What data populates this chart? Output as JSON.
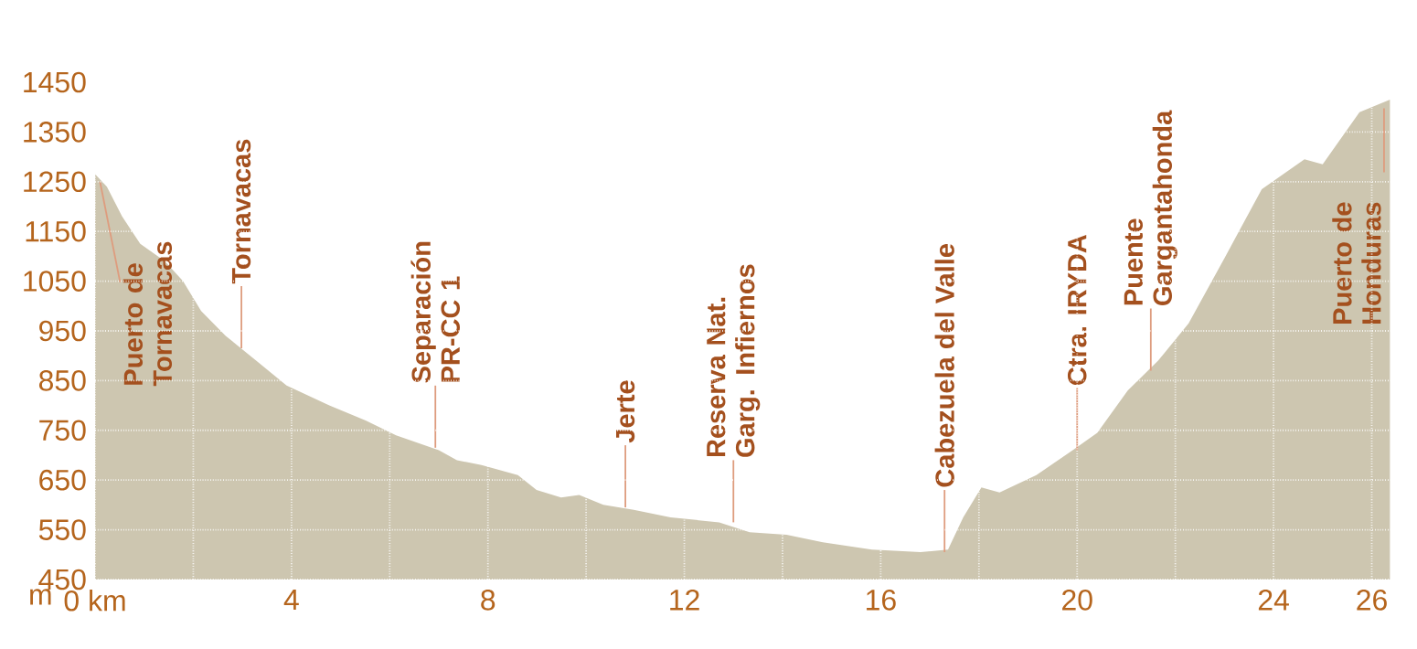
{
  "chart_data": {
    "type": "area",
    "ylabel": "m",
    "color": "#cdc6b0",
    "grid": true,
    "x": [
      0,
      0.24,
      0.55,
      0.92,
      1.42,
      1.79,
      2.16,
      2.66,
      3.28,
      3.9,
      4.77,
      5.51,
      6.13,
      7.0,
      7.37,
      7.87,
      8.61,
      8.99,
      9.49,
      9.86,
      10.35,
      10.97,
      11.72,
      12.71,
      13.33,
      14.08,
      14.82,
      15.82,
      16.81,
      17.37,
      17.68,
      18.05,
      18.42,
      19.17,
      19.91,
      20.41,
      21.03,
      21.65,
      22.27,
      23.02,
      23.76,
      24.63,
      25.0,
      25.75,
      26.37
    ],
    "values": [
      1265,
      1240,
      1180,
      1125,
      1090,
      1050,
      990,
      940,
      890,
      840,
      800,
      770,
      740,
      710,
      690,
      680,
      660,
      630,
      615,
      620,
      600,
      590,
      575,
      565,
      545,
      540,
      525,
      510,
      505,
      510,
      575,
      635,
      625,
      660,
      710,
      745,
      830,
      890,
      965,
      1100,
      1235,
      1295,
      1285,
      1390,
      1415
    ],
    "xlim": [
      0,
      26.4
    ],
    "ylim": [
      450,
      1450
    ],
    "xticks": [
      {
        "value": 0,
        "label": "0 km"
      },
      {
        "value": 2,
        "label": null
      },
      4,
      {
        "value": 6,
        "label": null
      },
      8,
      {
        "value": 10,
        "label": null
      },
      12,
      {
        "value": 14,
        "label": null
      },
      16,
      {
        "value": 18,
        "label": null
      },
      20,
      {
        "value": 22,
        "label": null
      },
      24,
      26
    ],
    "yticks": [
      450,
      550,
      650,
      750,
      850,
      950,
      1050,
      1150,
      1250,
      1350,
      1450
    ],
    "annotations": [
      {
        "text": "Puerto de Tornavacas",
        "x": 0.1,
        "y": 1250
      },
      {
        "text": "Tornavacas",
        "x": 2.98,
        "y": 915
      },
      {
        "text": "Separación PR-CC 1",
        "x": 6.93,
        "y": 715
      },
      {
        "text": "Jerte",
        "x": 10.8,
        "y": 595
      },
      {
        "text": "Reserva Nat. Garg. Infiernos",
        "x": 13.0,
        "y": 565
      },
      {
        "text": "Cabezuela del Valle",
        "x": 17.3,
        "y": 505
      },
      {
        "text": "Ctra. IRYDA",
        "x": 20.0,
        "y": 710
      },
      {
        "text": "Puente Gargantahonda",
        "x": 21.5,
        "y": 870
      },
      {
        "text": "Puerto de Honduras",
        "x": 26.25,
        "y": 1405
      }
    ]
  }
}
